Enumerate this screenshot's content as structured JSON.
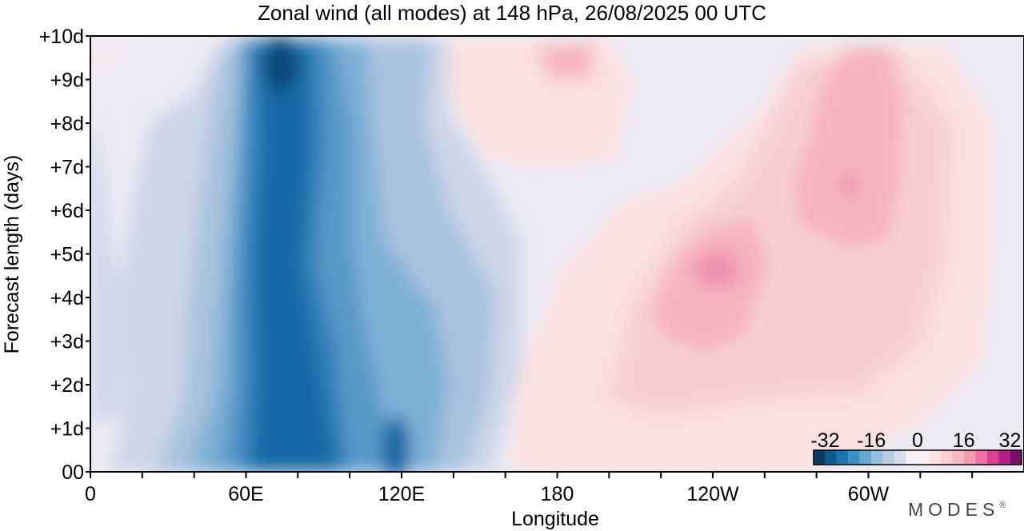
{
  "chart_data": {
    "type": "heatmap",
    "title": "Zonal wind (all modes) at 148 hPa,  26/08/2025  00 UTC",
    "xlabel": "Longitude",
    "ylabel": "Forecast length (days)",
    "x_ticks": [
      "0",
      "60E",
      "120E",
      "180",
      "120W",
      "60W"
    ],
    "x_tick_values": [
      0,
      60,
      120,
      180,
      240,
      300
    ],
    "x_range": [
      0,
      360
    ],
    "y_ticks": [
      "00",
      "+1d",
      "+2d",
      "+3d",
      "+4d",
      "+5d",
      "+6d",
      "+7d",
      "+8d",
      "+9d",
      "+10d"
    ],
    "y_range": [
      0,
      10
    ],
    "colorbar": {
      "labels": [
        "-32",
        "-16",
        "0",
        "16",
        "32"
      ],
      "label_values": [
        -32,
        -16,
        0,
        16,
        32
      ],
      "levels": [
        -36,
        -32,
        -28,
        -24,
        -20,
        -16,
        -12,
        -8,
        -4,
        4,
        8,
        12,
        16,
        20,
        24,
        28,
        32,
        36
      ],
      "colors": [
        "#0a3a5e",
        "#0d5c8f",
        "#1a76b0",
        "#3a8fc4",
        "#66a8d1",
        "#94bedd",
        "#b8cbe3",
        "#d7dcec",
        "#f7f1f4",
        "#fde2e2",
        "#fbcfd0",
        "#f8b7bd",
        "#f59bb0",
        "#ef6fa6",
        "#dc3f93",
        "#b81c86",
        "#7a0f6b"
      ]
    },
    "approx_wind_features": [
      {
        "name": "easterly core",
        "lon_center": 75,
        "days": [
          0,
          10
        ],
        "min_value": -32
      },
      {
        "name": "easterly band",
        "lon_range": [
          55,
          140
        ],
        "value_range": [
          -28,
          -12
        ]
      },
      {
        "name": "westerly maximum",
        "lon_center": 238,
        "day": 4.5,
        "max_value": 20
      },
      {
        "name": "westerly maximum",
        "lon_center": 306,
        "day": 6.5,
        "max_value": 20
      }
    ]
  },
  "branding": {
    "watermark": "MODES",
    "registered_mark": "®"
  }
}
